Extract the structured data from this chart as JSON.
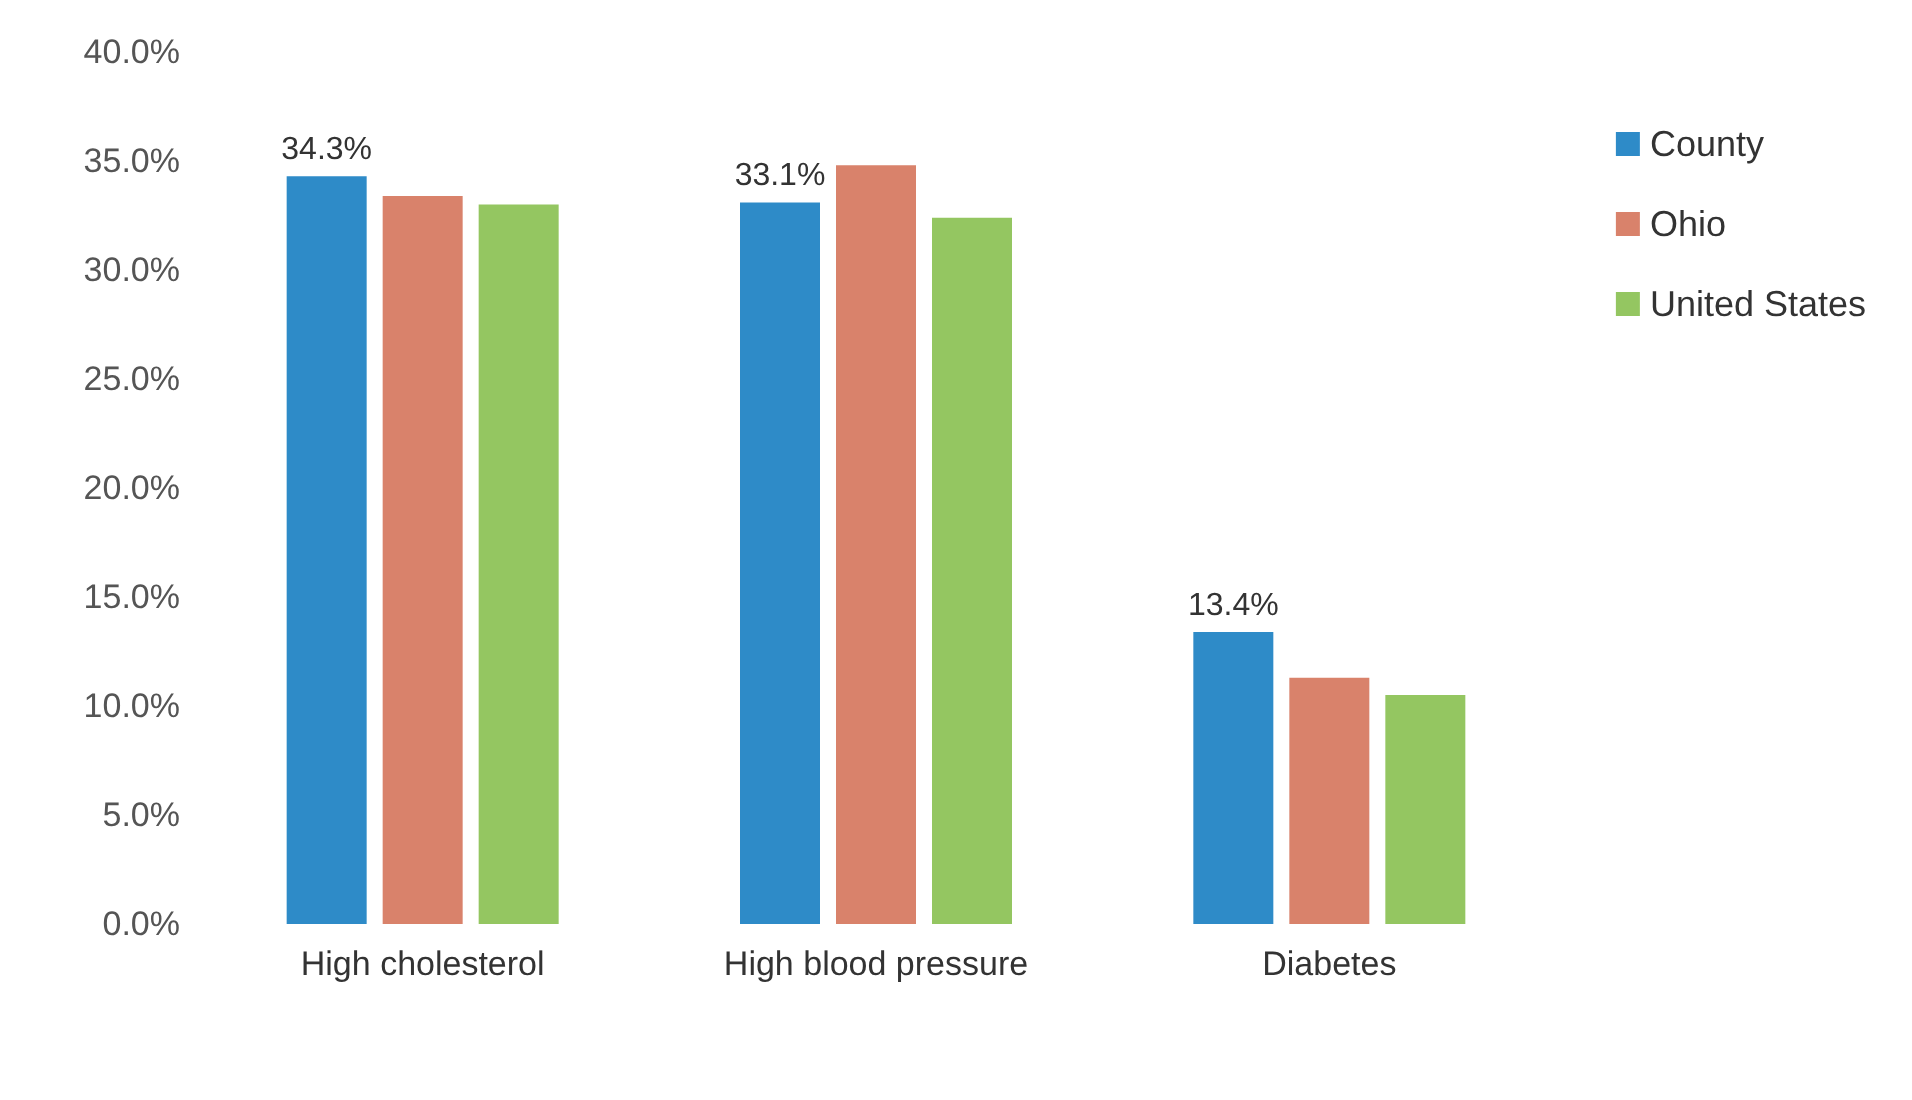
{
  "chart_data": {
    "type": "bar",
    "categories": [
      "High cholesterol",
      "High blood pressure",
      "Diabetes"
    ],
    "series": [
      {
        "name": "County",
        "color": "#2e8bc8",
        "values": [
          34.3,
          33.1,
          13.4
        ],
        "value_labels": [
          "34.3%",
          "33.1%",
          "13.4%"
        ]
      },
      {
        "name": "Ohio",
        "color": "#d9826b",
        "values": [
          33.4,
          34.8,
          11.3
        ]
      },
      {
        "name": "United States",
        "color": "#94c661",
        "values": [
          33.0,
          32.4,
          10.5
        ]
      }
    ],
    "ylim": [
      0,
      40
    ],
    "yticks": [
      {
        "value": 0,
        "label": "0.0%"
      },
      {
        "value": 5,
        "label": "5.0%"
      },
      {
        "value": 10,
        "label": "10.0%"
      },
      {
        "value": 15,
        "label": "15.0%"
      },
      {
        "value": 20,
        "label": "20.0%"
      },
      {
        "value": 25,
        "label": "25.0%"
      },
      {
        "value": 30,
        "label": "30.0%"
      },
      {
        "value": 35,
        "label": "35.0%"
      },
      {
        "value": 40,
        "label": "40.0%"
      }
    ],
    "legend": "top right",
    "grid": false
  }
}
